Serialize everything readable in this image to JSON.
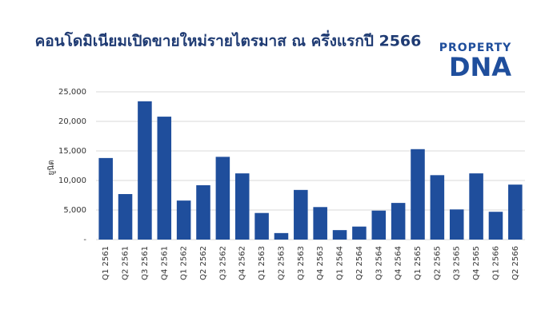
{
  "chart_data": {
    "type": "bar",
    "title": "คอนโดมิเนียมเปิดขายใหม่รายไตรมาส ณ ครึ่งแรกปี 2566",
    "y_label": "ยูนิต",
    "logo_top": "PROPERTY",
    "logo_bottom": "DNA",
    "categories": [
      "Q1 2561",
      "Q2 2561",
      "Q3 2561",
      "Q4 2561",
      "Q1 2562",
      "Q2 2562",
      "Q3 2562",
      "Q4 2562",
      "Q1 2563",
      "Q2 2563",
      "Q3 2563",
      "Q4 2563",
      "Q1 2564",
      "Q2 2564",
      "Q3 2564",
      "Q4 2564",
      "Q1 2565",
      "Q2 2565",
      "Q3 2565",
      "Q4 2565",
      "Q1 2566",
      "Q2 2566"
    ],
    "values": [
      13800,
      7700,
      23400,
      20800,
      6600,
      9200,
      14000,
      11200,
      4500,
      1100,
      8400,
      5500,
      1600,
      2200,
      4900,
      6200,
      15300,
      10900,
      5100,
      11200,
      4700,
      9300
    ],
    "color": "#1f4e9c",
    "ylim": [
      0,
      25000
    ],
    "yticks": [
      {
        "value": 0,
        "label": "-"
      },
      {
        "value": 5000,
        "label": "5,000"
      },
      {
        "value": 10000,
        "label": "10,000"
      },
      {
        "value": 15000,
        "label": "15,000"
      },
      {
        "value": 20000,
        "label": "20,000"
      },
      {
        "value": 25000,
        "label": "25,000"
      }
    ],
    "grid": true
  }
}
